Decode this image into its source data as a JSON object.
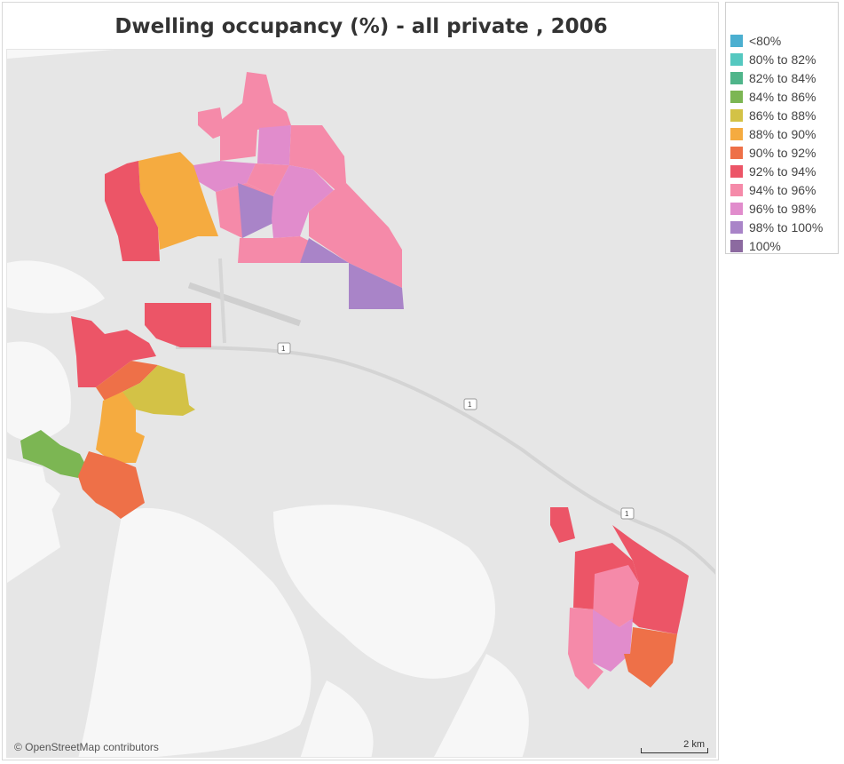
{
  "title": "Dwelling occupancy (%) - all private , 2006",
  "legend": {
    "items": [
      {
        "label": "<80%",
        "color": "#4bafd0"
      },
      {
        "label": "80% to 82%",
        "color": "#55c8c0"
      },
      {
        "label": "82% to 84%",
        "color": "#4fb58a"
      },
      {
        "label": "84% to 86%",
        "color": "#7cb653"
      },
      {
        "label": "86% to 88%",
        "color": "#d3c246"
      },
      {
        "label": "88% to 90%",
        "color": "#f5ab40"
      },
      {
        "label": "90% to 92%",
        "color": "#ee7048"
      },
      {
        "label": "92% to 94%",
        "color": "#ec5567"
      },
      {
        "label": "94% to 96%",
        "color": "#f58aa9"
      },
      {
        "label": "96% to 98%",
        "color": "#e18ccc"
      },
      {
        "label": "98% to 100%",
        "color": "#a984c8"
      },
      {
        "label": "100%",
        "color": "#8c6aa0"
      }
    ]
  },
  "map": {
    "attribution": "© OpenStreetMap contributors",
    "scale_label": "2 km",
    "road_shield_label": "1"
  }
}
